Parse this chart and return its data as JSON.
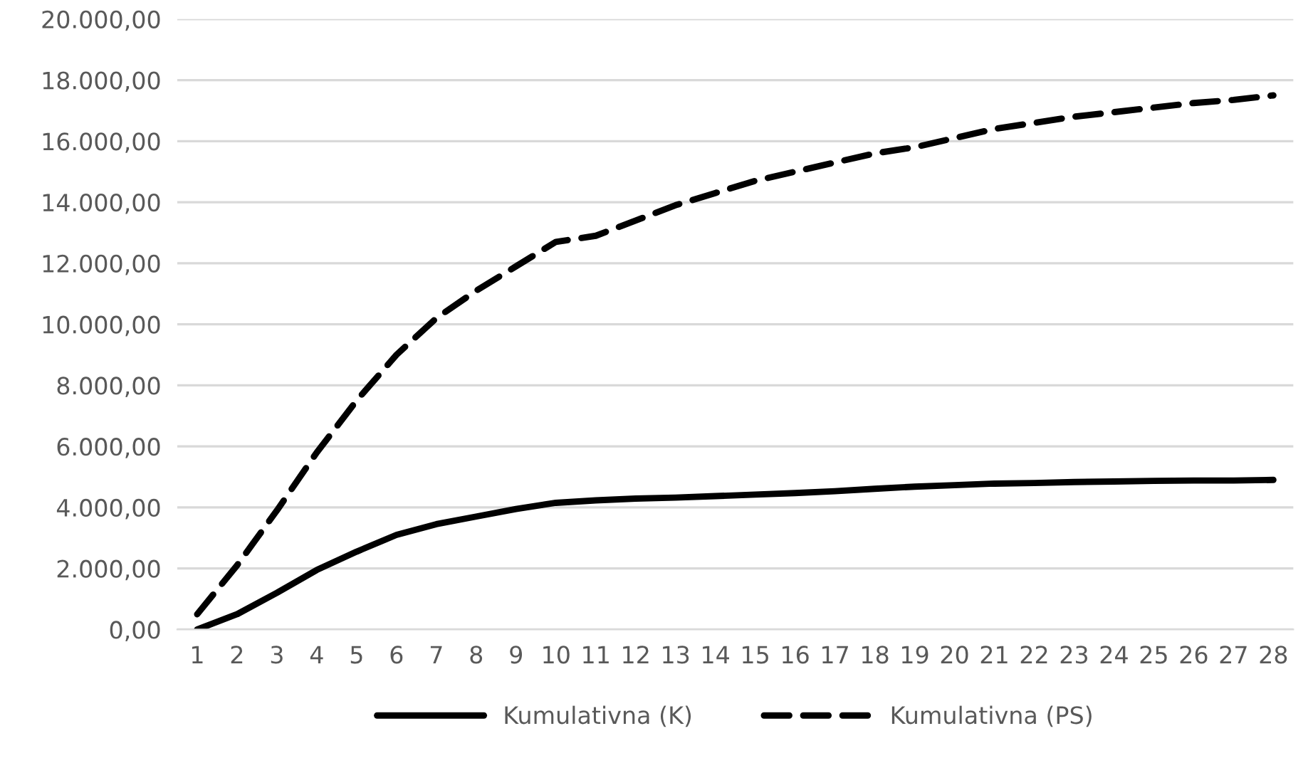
{
  "chart_data": {
    "type": "line",
    "categories": [
      "1",
      "2",
      "3",
      "4",
      "5",
      "6",
      "7",
      "8",
      "9",
      "10",
      "11",
      "12",
      "13",
      "14",
      "15",
      "16",
      "17",
      "18",
      "19",
      "20",
      "21",
      "22",
      "23",
      "24",
      "25",
      "26",
      "27",
      "28"
    ],
    "series": [
      {
        "name": "Kumulativna (K)",
        "color": "#000000",
        "line_style": "solid",
        "values": [
          0,
          500,
          1200,
          1950,
          2550,
          3100,
          3450,
          3700,
          3950,
          4150,
          4230,
          4290,
          4320,
          4370,
          4420,
          4470,
          4530,
          4610,
          4680,
          4730,
          4780,
          4800,
          4830,
          4850,
          4870,
          4880,
          4880,
          4900
        ]
      },
      {
        "name": "Kumulativna (PS)",
        "color": "#000000",
        "line_style": "dashed",
        "values": [
          500,
          2100,
          3900,
          5800,
          7500,
          9000,
          10200,
          11100,
          11900,
          12700,
          12900,
          13400,
          13900,
          14300,
          14700,
          15000,
          15300,
          15600,
          15800,
          16100,
          16400,
          16600,
          16800,
          16950,
          17100,
          17250,
          17350,
          17500
        ]
      }
    ],
    "ylim": [
      0,
      20000
    ],
    "yticks": [
      {
        "value": 0,
        "label": "0,00"
      },
      {
        "value": 2000,
        "label": "2.000,00"
      },
      {
        "value": 4000,
        "label": "4.000,00"
      },
      {
        "value": 6000,
        "label": "6.000,00"
      },
      {
        "value": 8000,
        "label": "8.000,00"
      },
      {
        "value": 10000,
        "label": "10.000,00"
      },
      {
        "value": 12000,
        "label": "12.000,00"
      },
      {
        "value": 14000,
        "label": "14.000,00"
      },
      {
        "value": 16000,
        "label": "16.000,00"
      },
      {
        "value": 18000,
        "label": "18.000,00"
      },
      {
        "value": 20000,
        "label": "20.000,00"
      }
    ],
    "grid": "y",
    "legend": "bottom",
    "marker": "none"
  }
}
